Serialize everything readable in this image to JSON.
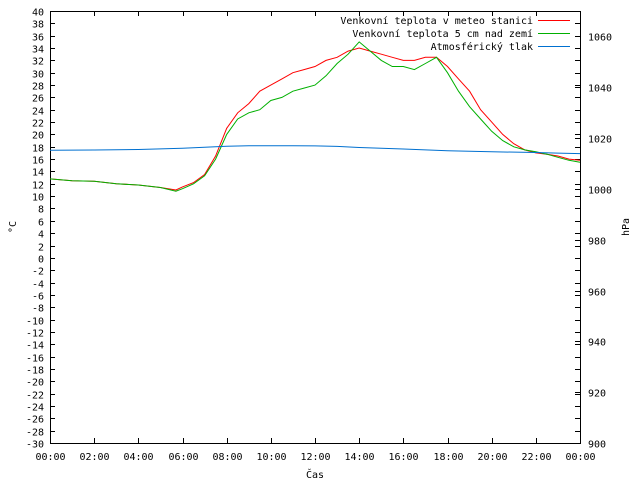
{
  "chart_data": {
    "type": "line",
    "xlabel": "Čas",
    "ylabel_left": "°C",
    "ylabel_right": "hPa",
    "x_ticks": [
      "00:00",
      "02:00",
      "04:00",
      "06:00",
      "08:00",
      "10:00",
      "12:00",
      "14:00",
      "16:00",
      "18:00",
      "20:00",
      "22:00",
      "00:00"
    ],
    "x_range_hours": [
      0,
      24
    ],
    "ylim_left": [
      -30,
      40
    ],
    "ylim_right": [
      900,
      1070
    ],
    "left_ticks": [
      40,
      38,
      36,
      34,
      32,
      30,
      28,
      26,
      24,
      22,
      20,
      18,
      16,
      14,
      12,
      10,
      8,
      6,
      4,
      2,
      0,
      -2,
      -4,
      -6,
      -8,
      -10,
      -12,
      -14,
      -16,
      -18,
      -20,
      -22,
      -24,
      -26,
      -28,
      -30
    ],
    "right_ticks": [
      1060,
      1040,
      1020,
      1000,
      980,
      960,
      940,
      920,
      900
    ],
    "legend_position": "top-right",
    "grid": false,
    "series": [
      {
        "name": "Venkovní teplota v meteo stanici",
        "color": "#ff0000",
        "axis": "left",
        "x": [
          0,
          1,
          2,
          3,
          4,
          5,
          5.7,
          6,
          6.5,
          7,
          7.5,
          8,
          8.5,
          9,
          9.5,
          10,
          10.5,
          11,
          11.5,
          12,
          12.5,
          13,
          13.5,
          14,
          14.5,
          15,
          15.5,
          16,
          16.5,
          17,
          17.5,
          18,
          18.5,
          19,
          19.5,
          20,
          20.5,
          21,
          21.5,
          22,
          22.5,
          23,
          23.5,
          24
        ],
        "values": [
          12.8,
          12.5,
          12.4,
          12.0,
          11.8,
          11.4,
          11.0,
          11.5,
          12.2,
          13.5,
          16.5,
          21.0,
          23.5,
          25.0,
          27.0,
          28.0,
          29.0,
          30.0,
          30.5,
          31.0,
          32.0,
          32.5,
          33.5,
          34.0,
          33.5,
          33.0,
          32.5,
          32.0,
          32.0,
          32.5,
          32.5,
          31.0,
          29.0,
          27.0,
          24.0,
          22.0,
          20.0,
          18.5,
          17.5,
          17.0,
          16.8,
          16.5,
          16.0,
          15.8
        ]
      },
      {
        "name": "Venkovní teplota 5 cm nad zemí",
        "color": "#00b000",
        "axis": "left",
        "x": [
          0,
          1,
          2,
          3,
          4,
          5,
          5.7,
          6,
          6.5,
          7,
          7.5,
          8,
          8.5,
          9,
          9.5,
          10,
          10.5,
          11,
          11.5,
          12,
          12.5,
          13,
          13.5,
          14,
          14.5,
          15,
          15.5,
          16,
          16.5,
          17,
          17.5,
          18,
          18.5,
          19,
          19.5,
          20,
          20.5,
          21,
          21.5,
          22,
          22.5,
          23,
          23.5,
          24
        ],
        "values": [
          12.8,
          12.5,
          12.4,
          12.0,
          11.8,
          11.4,
          10.8,
          11.2,
          12.0,
          13.3,
          16.0,
          20.0,
          22.5,
          23.5,
          24.0,
          25.5,
          26.0,
          27.0,
          27.5,
          28.0,
          29.5,
          31.5,
          33.0,
          35.0,
          33.5,
          32.0,
          31.0,
          31.0,
          30.5,
          31.5,
          32.5,
          30.0,
          27.0,
          24.5,
          22.5,
          20.5,
          19.0,
          18.0,
          17.5,
          17.2,
          16.8,
          16.3,
          15.8,
          15.5
        ]
      },
      {
        "name": "Atmosférický tlak",
        "color": "#0070d0",
        "axis": "right",
        "x": [
          0,
          2,
          4,
          6,
          8,
          9,
          10,
          11,
          12,
          13,
          14,
          15,
          16,
          18,
          20,
          22,
          23,
          24
        ],
        "values": [
          1015.2,
          1015.3,
          1015.5,
          1016.0,
          1016.8,
          1017.0,
          1017.0,
          1017.0,
          1016.9,
          1016.7,
          1016.3,
          1016.0,
          1015.7,
          1015.0,
          1014.6,
          1014.3,
          1014.1,
          1013.9
        ]
      }
    ]
  }
}
